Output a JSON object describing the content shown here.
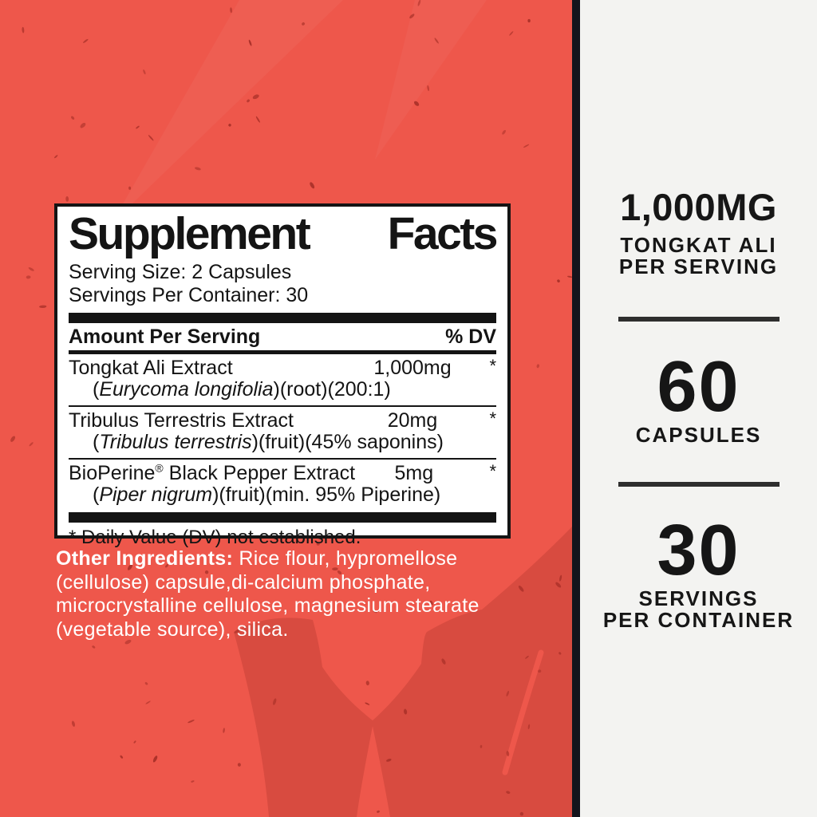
{
  "colors": {
    "red_bg": "#ee574b",
    "red_shadow": "#d84b40",
    "speckle": "#a93028",
    "panel_border": "#141414",
    "panel_bg": "#ffffff",
    "text_dark": "#141414",
    "divider_bar": "#14141c",
    "sidebar_bg": "#f3f3f1",
    "sidebar_text": "#161616",
    "sidebar_rule": "#2e2e2e",
    "white_text": "#ffffff"
  },
  "facts_panel": {
    "title": {
      "word1": "Supplement",
      "word2": "Facts"
    },
    "serving_size": "Serving Size: 2 Capsules",
    "servings_per_container": "Servings Per Container: 30",
    "header": {
      "left": "Amount Per Serving",
      "right": "% DV"
    },
    "rows": [
      {
        "name_pre": "Tongkat Ali Extract",
        "name_sup": "",
        "name_post": "",
        "detail_pre": "(",
        "detail_italic": "Eurycoma longifolia",
        "detail_post": ")(root)(200:1)",
        "amount": "1,000mg",
        "dv": "*"
      },
      {
        "name_pre": "Tribulus Terrestris Extract",
        "name_sup": "",
        "name_post": "",
        "detail_pre": "(",
        "detail_italic": "Tribulus terrestris",
        "detail_post": ")(fruit)(45% saponins)",
        "amount": "20mg",
        "dv": "*"
      },
      {
        "name_pre": "BioPerine",
        "name_sup": "®",
        "name_post": " Black Pepper Extract",
        "detail_pre": "(",
        "detail_italic": "Piper nigrum",
        "detail_post": ")(fruit)(min. 95% Piperine)",
        "amount": "5mg",
        "dv": "*"
      }
    ],
    "footnote": "* Daily Value (DV) not established."
  },
  "other_ingredients": {
    "label": "Other Ingredients:",
    "line1_rest": " Rice flour, hypromellose",
    "lines": [
      "(cellulose) capsule,di-calcium phosphate,",
      "microcrystalline cellulose, magnesium stearate",
      "(vegetable source), silica."
    ]
  },
  "sidebar": {
    "sections": [
      {
        "headline": "1,000MG",
        "subline1": "TONGKAT ALI",
        "subline2": "PER SERVING"
      },
      {
        "headline": "60",
        "subline1": "CAPSULES",
        "subline2": ""
      },
      {
        "headline": "30",
        "subline1": "SERVINGS",
        "subline2": "PER CONTAINER"
      }
    ]
  }
}
